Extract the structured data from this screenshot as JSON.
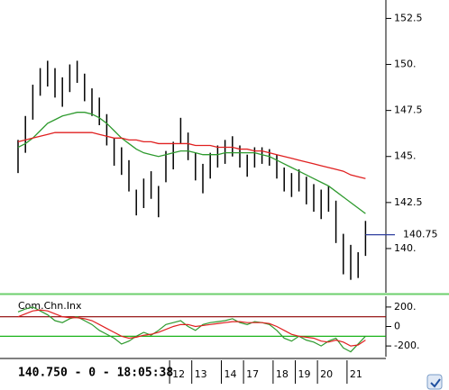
{
  "status": "140.750 - 0 - 18:05:38",
  "chart_data": [
    {
      "type": "hilo",
      "categories": [
        null,
        null,
        null,
        null,
        null,
        null,
        null,
        null,
        null,
        null,
        null,
        null,
        null,
        null,
        null,
        null,
        null,
        null,
        null,
        null,
        null,
        "12",
        null,
        null,
        "13",
        null,
        null,
        null,
        "14",
        null,
        null,
        "17",
        null,
        null,
        null,
        "18",
        null,
        null,
        "19",
        null,
        null,
        "20",
        null,
        null,
        null,
        "21",
        null,
        null
      ],
      "high": [
        145.9,
        147.2,
        148.9,
        149.8,
        150.2,
        149.8,
        149.3,
        150.0,
        150.2,
        149.5,
        148.7,
        148.2,
        147.3,
        146.0,
        145.5,
        144.8,
        143.2,
        143.8,
        144.2,
        143.4,
        145.3,
        145.8,
        147.1,
        146.3,
        145.2,
        144.6,
        145.2,
        145.6,
        145.9,
        146.1,
        145.6,
        145.1,
        145.5,
        145.5,
        145.4,
        145.1,
        144.4,
        144.1,
        144.3,
        143.9,
        143.5,
        143.2,
        143.4,
        142.6,
        140.8,
        140.2,
        139.8,
        141.5
      ],
      "low": [
        144.1,
        145.2,
        147.0,
        148.3,
        148.8,
        148.2,
        147.7,
        148.5,
        149.0,
        148.0,
        147.2,
        146.7,
        145.6,
        144.5,
        144.0,
        143.1,
        141.8,
        142.2,
        142.7,
        141.7,
        143.6,
        144.3,
        145.7,
        144.8,
        143.7,
        143.0,
        143.8,
        144.4,
        144.6,
        145.0,
        144.4,
        143.9,
        144.4,
        144.6,
        144.5,
        143.8,
        143.1,
        142.8,
        143.1,
        142.4,
        142.0,
        141.6,
        142.0,
        140.3,
        138.6,
        138.3,
        138.4,
        139.6
      ],
      "color": "#000000",
      "series": [
        {
          "color": "#2e9a2e",
          "values": [
            145.5,
            145.7,
            146.0,
            146.4,
            146.8,
            147.0,
            147.2,
            147.3,
            147.4,
            147.4,
            147.3,
            147.1,
            146.8,
            146.4,
            146.0,
            145.7,
            145.4,
            145.2,
            145.1,
            145.0,
            145.1,
            145.2,
            145.3,
            145.3,
            145.2,
            145.1,
            145.1,
            145.1,
            145.2,
            145.2,
            145.2,
            145.2,
            145.2,
            145.1,
            145.0,
            144.8,
            144.6,
            144.4,
            144.2,
            144.0,
            143.8,
            143.6,
            143.4,
            143.1,
            142.8,
            142.5,
            142.2,
            141.9
          ]
        },
        {
          "color": "#e02020",
          "values": [
            145.8,
            145.9,
            146.0,
            146.1,
            146.2,
            146.3,
            146.3,
            146.3,
            146.3,
            146.3,
            146.3,
            146.2,
            146.1,
            146.0,
            146.0,
            145.9,
            145.9,
            145.8,
            145.8,
            145.7,
            145.7,
            145.7,
            145.7,
            145.7,
            145.6,
            145.6,
            145.6,
            145.5,
            145.5,
            145.5,
            145.4,
            145.4,
            145.3,
            145.3,
            145.2,
            145.1,
            145.0,
            144.9,
            144.8,
            144.7,
            144.6,
            144.5,
            144.4,
            144.3,
            144.2,
            144.0,
            143.9,
            143.8
          ]
        }
      ],
      "last_value": {
        "value": 140.75,
        "label": "140.75",
        "color": "#3040a0"
      },
      "ylim": [
        137.6,
        153.5
      ],
      "yticks": [
        152.5,
        {
          "value": 150,
          "label": "150."
        },
        147.5,
        {
          "value": 145,
          "label": "145."
        },
        142.5,
        {
          "value": 140,
          "label": "140."
        }
      ]
    },
    {
      "type": "line",
      "title": "Com.Chn.Inx",
      "series": [
        {
          "color": "#2e9a2e",
          "values": [
            150,
            180,
            200,
            160,
            120,
            60,
            40,
            80,
            100,
            60,
            20,
            -40,
            -80,
            -120,
            -180,
            -150,
            -100,
            -60,
            -90,
            -40,
            20,
            40,
            60,
            0,
            -40,
            20,
            40,
            50,
            60,
            80,
            40,
            20,
            50,
            40,
            20,
            -40,
            -120,
            -150,
            -100,
            -140,
            -160,
            -200,
            -150,
            -120,
            -220,
            -260,
            -180,
            -100
          ]
        },
        {
          "color": "#e02020",
          "values": [
            100,
            130,
            160,
            170,
            160,
            130,
            100,
            90,
            90,
            80,
            60,
            20,
            -20,
            -60,
            -100,
            -120,
            -110,
            -90,
            -80,
            -60,
            -30,
            0,
            20,
            20,
            0,
            10,
            20,
            30,
            40,
            50,
            50,
            40,
            40,
            40,
            30,
            0,
            -40,
            -80,
            -100,
            -110,
            -120,
            -150,
            -160,
            -140,
            -160,
            -200,
            -190,
            -140
          ]
        }
      ],
      "reference_lines": [
        {
          "value": 100,
          "color": "#8b0000"
        },
        {
          "value": -100,
          "color": "#00aa00"
        }
      ],
      "ylim": [
        -310,
        310
      ],
      "yticks": [
        {
          "value": 200,
          "label": "200."
        },
        0,
        {
          "value": -200,
          "label": "-200."
        }
      ]
    }
  ]
}
